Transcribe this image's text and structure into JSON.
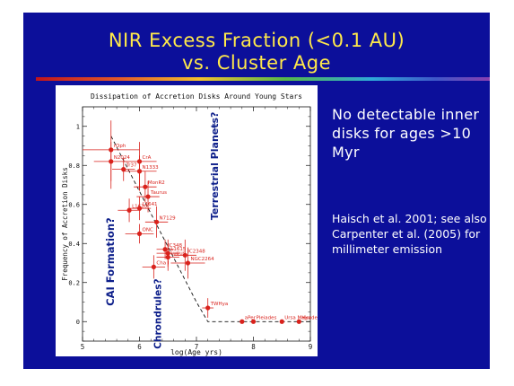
{
  "slide": {
    "title_line1": "NIR Excess Fraction (<0.1 AU)",
    "title_line2": "vs. Cluster Age",
    "note1": "No detectable inner disks for ages >10 Myr",
    "note2": "Haisch et al. 2001; see also Carpenter et al. (2005) for millimeter emission",
    "colors": {
      "background": "#0c0f9a",
      "title": "#ffe94a",
      "text": "#ffffff",
      "points": "#d9221c",
      "annotation": "#0c1e8a"
    }
  },
  "chart_data": {
    "type": "scatter",
    "title": "Dissipation of Accretion Disks Around Young Stars",
    "xlabel": "log(Age yrs)",
    "ylabel": "Frequency of Accretion Disks",
    "xlim": [
      5,
      9
    ],
    "ylim": [
      -0.1,
      1.1
    ],
    "xticks": [
      "5",
      "6",
      "7",
      "8",
      "9"
    ],
    "yticks": [
      "0",
      "0.2",
      "0.4",
      "0.6",
      "0.8",
      "1"
    ],
    "points": [
      {
        "label": "rOph",
        "x": 5.5,
        "y": 0.88,
        "xerr": [
          0.5,
          0.5
        ],
        "yerr": [
          0.2,
          0.15
        ]
      },
      {
        "label": "N2024",
        "x": 5.5,
        "y": 0.82,
        "xerr": [
          0.3,
          0.3
        ],
        "yerr": [
          0.1,
          0.1
        ]
      },
      {
        "label": "Tr37",
        "x": 5.72,
        "y": 0.78,
        "xerr": [
          0.2,
          0.2
        ],
        "yerr": [
          0.06,
          0.06
        ]
      },
      {
        "label": "CrA",
        "x": 6.0,
        "y": 0.82,
        "xerr": [
          0.3,
          0.3
        ],
        "yerr": [
          0.15,
          0.1
        ]
      },
      {
        "label": "N1333",
        "x": 6.0,
        "y": 0.77,
        "xerr": [
          0.3,
          0.3
        ],
        "yerr": [
          0.1,
          0.08
        ]
      },
      {
        "label": "MonR2",
        "x": 6.1,
        "y": 0.69,
        "xerr": [
          0.2,
          0.2
        ],
        "yerr": [
          0.08,
          0.08
        ]
      },
      {
        "label": "Taurus",
        "x": 6.15,
        "y": 0.64,
        "xerr": [
          0.2,
          0.2
        ],
        "yerr": [
          0.08,
          0.08
        ]
      },
      {
        "label": "L1641",
        "x": 6.0,
        "y": 0.58,
        "xerr": [
          0.2,
          0.2
        ],
        "yerr": [
          0.06,
          0.06
        ]
      },
      {
        "label": "L1630",
        "x": 5.82,
        "y": 0.57,
        "xerr": [
          0.2,
          0.2
        ],
        "yerr": [
          0.06,
          0.06
        ]
      },
      {
        "label": "N7129",
        "x": 6.3,
        "y": 0.51,
        "xerr": [
          0.2,
          0.2
        ],
        "yerr": [
          0.08,
          0.08
        ]
      },
      {
        "label": "ONC",
        "x": 6.0,
        "y": 0.45,
        "xerr": [
          0.25,
          0.25
        ],
        "yerr": [
          0.05,
          0.05
        ]
      },
      {
        "label": "IC348",
        "x": 6.45,
        "y": 0.37,
        "xerr": [
          0.15,
          0.15
        ],
        "yerr": [
          0.05,
          0.05
        ]
      },
      {
        "label": "L1615",
        "x": 6.5,
        "y": 0.35,
        "xerr": [
          0.2,
          0.2
        ],
        "yerr": [
          0.07,
          0.07
        ]
      },
      {
        "label": "Lupus",
        "x": 6.5,
        "y": 0.33,
        "xerr": [
          0.2,
          0.2
        ],
        "yerr": [
          0.07,
          0.07
        ]
      },
      {
        "label": "IC2348",
        "x": 6.8,
        "y": 0.34,
        "xerr": [
          0.2,
          0.2
        ],
        "yerr": [
          0.08,
          0.08
        ]
      },
      {
        "label": "NGC2264",
        "x": 6.85,
        "y": 0.3,
        "xerr": [
          0.3,
          0.3
        ],
        "yerr": [
          0.08,
          0.08
        ]
      },
      {
        "label": "Cha I",
        "x": 6.25,
        "y": 0.28,
        "xerr": [
          0.2,
          0.2
        ],
        "yerr": [
          0.06,
          0.06
        ]
      },
      {
        "label": "TWHya",
        "x": 7.2,
        "y": 0.07,
        "xerr": [
          0.1,
          0.1
        ],
        "yerr": [
          0.05,
          0.05
        ]
      },
      {
        "label": "aPer",
        "x": 7.8,
        "y": 0.0,
        "xerr": [
          0,
          0
        ],
        "yerr": [
          0,
          0
        ]
      },
      {
        "label": "Pleiades",
        "x": 8.0,
        "y": 0.0,
        "xerr": [
          0,
          0
        ],
        "yerr": [
          0,
          0
        ]
      },
      {
        "label": "Ursa Major",
        "x": 8.5,
        "y": 0.0,
        "xerr": [
          0,
          0
        ],
        "yerr": [
          0,
          0
        ]
      },
      {
        "label": "Hyades",
        "x": 8.8,
        "y": 0.0,
        "xerr": [
          0,
          0
        ],
        "yerr": [
          0,
          0
        ]
      }
    ],
    "trend_line": [
      [
        5.5,
        0.95
      ],
      [
        7.0,
        0.1
      ],
      [
        7.2,
        0.0
      ],
      [
        9.0,
        0.0
      ]
    ],
    "annotations": [
      {
        "text": "CAI Formation?",
        "x": 5.55,
        "y": 0.08,
        "rotate": -90,
        "size": 11.5
      },
      {
        "text": "Chrondrules?",
        "x": 6.38,
        "y": -0.14,
        "rotate": -90,
        "size": 10.5
      },
      {
        "text": "Terrestrial Planets?",
        "x": 7.38,
        "y": 0.52,
        "rotate": -90,
        "size": 11
      },
      {
        "text": "|",
        "x": 7.3,
        "y": 0.99,
        "rotate": 0,
        "size": 8
      }
    ]
  }
}
